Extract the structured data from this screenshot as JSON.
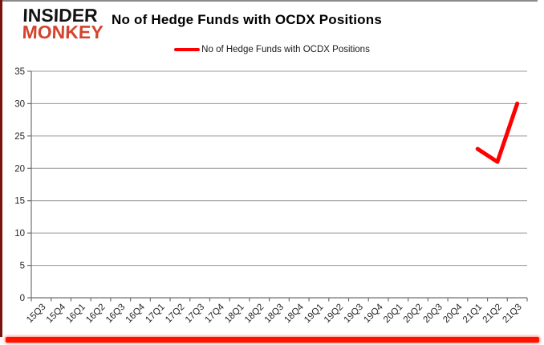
{
  "header": {
    "logo_line1": "INSIDER",
    "logo_line2": "MONKEY",
    "title": "No of Hedge Funds with OCDX Positions"
  },
  "legend": {
    "label": "No of Hedge Funds with OCDX Positions",
    "color": "#FF0000"
  },
  "chart_data": {
    "type": "line",
    "title": "No of Hedge Funds with OCDX Positions",
    "categories": [
      "15Q3",
      "15Q4",
      "16Q1",
      "16Q2",
      "16Q3",
      "16Q4",
      "17Q1",
      "17Q2",
      "17Q3",
      "17Q4",
      "18Q1",
      "18Q2",
      "18Q3",
      "18Q4",
      "19Q1",
      "19Q2",
      "19Q3",
      "19Q4",
      "20Q1",
      "20Q2",
      "20Q3",
      "20Q4",
      "21Q1",
      "21Q2",
      "21Q3"
    ],
    "series": [
      {
        "name": "No of Hedge Funds with OCDX Positions",
        "color": "#FF0000",
        "values": [
          null,
          null,
          null,
          null,
          null,
          null,
          null,
          null,
          null,
          null,
          null,
          null,
          null,
          null,
          null,
          null,
          null,
          null,
          null,
          null,
          null,
          null,
          23,
          21,
          30
        ]
      }
    ],
    "xlabel": "",
    "ylabel": "",
    "ylim": [
      0,
      35
    ],
    "yticks": [
      0,
      5,
      10,
      15,
      20,
      25,
      30,
      35
    ],
    "grid": true,
    "legend_position": "top"
  },
  "colors": {
    "series_red": "#FF0000",
    "logo_red": "#D3442E",
    "grid_gray": "#999999",
    "axis_gray": "#707070",
    "tick_label": "#262626",
    "frame_maroon": "#7A130C",
    "frame_gray": "#8A8A8A",
    "frame_red_bar": "#FF1200"
  }
}
